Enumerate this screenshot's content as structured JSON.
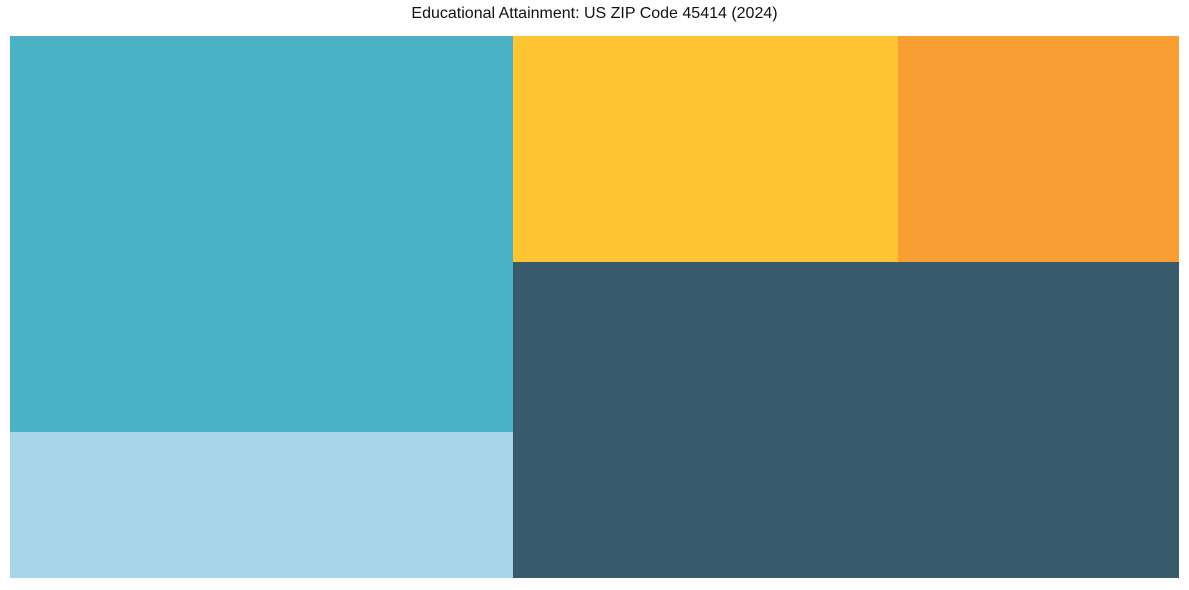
{
  "figure": {
    "background_color": "#ffffff",
    "title_color": "#111111"
  },
  "chart_data": {
    "type": "treemap",
    "title": "Educational Attainment: US ZIP Code 45414 (2024)",
    "xlabel": "",
    "ylabel": "",
    "legend": "none",
    "axes_shown": false,
    "grid": false,
    "tile_text_labels_shown": false,
    "tiles": [
      {
        "color_name": "teal",
        "color": "#4BB1C4",
        "area_pct_of_total": 31.4,
        "x_pct": 0,
        "y_pct": 0,
        "w_pct": 43.03,
        "h_pct": 73.06
      },
      {
        "color_name": "light-blue",
        "color": "#A6D4E8",
        "area_pct_of_total": 11.6,
        "x_pct": 0,
        "y_pct": 73.06,
        "w_pct": 43.03,
        "h_pct": 26.94
      },
      {
        "color_name": "yellow",
        "color": "#FEC431",
        "area_pct_of_total": 13.7,
        "x_pct": 43.03,
        "y_pct": 0,
        "w_pct": 32.93,
        "h_pct": 41.7
      },
      {
        "color_name": "orange",
        "color": "#F99E33",
        "area_pct_of_total": 10.0,
        "x_pct": 75.96,
        "y_pct": 0,
        "w_pct": 24.04,
        "h_pct": 41.7
      },
      {
        "color_name": "dark-slate",
        "color": "#375B6C",
        "area_pct_of_total": 33.2,
        "x_pct": 43.03,
        "y_pct": 41.7,
        "w_pct": 56.97,
        "h_pct": 58.3
      }
    ]
  }
}
